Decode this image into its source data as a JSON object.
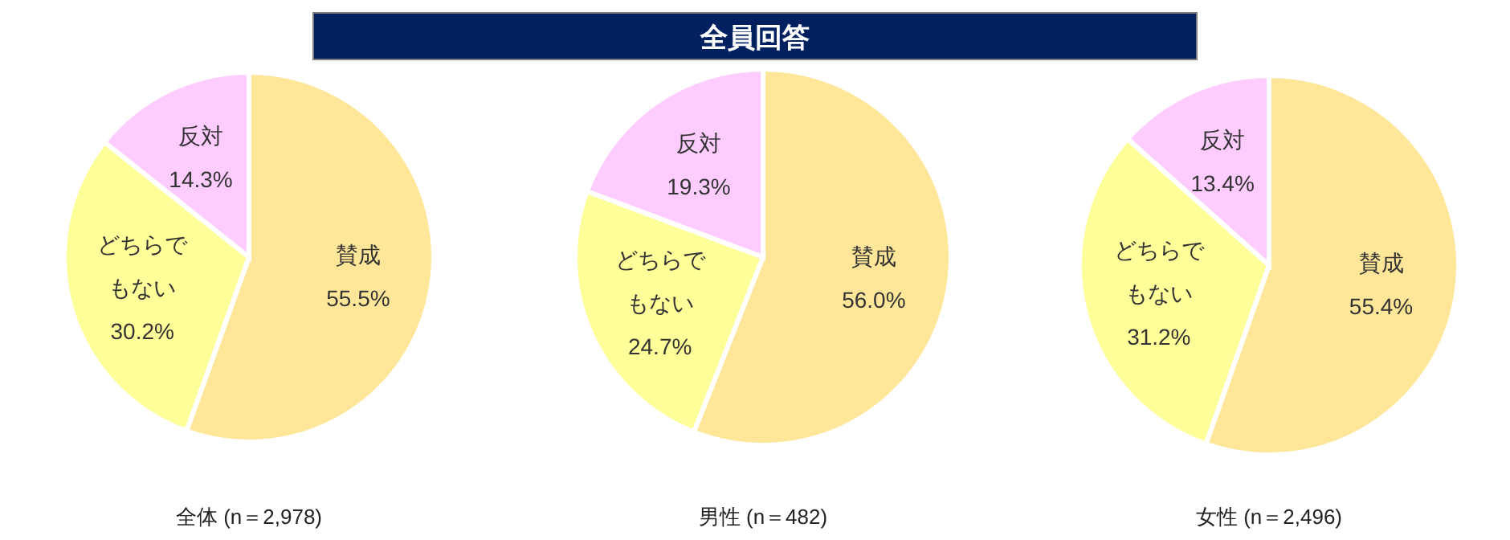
{
  "chart_data": [
    {
      "type": "pie",
      "title": "全体 (n＝2,978)",
      "annotations": [
        "全員回答"
      ],
      "categories": [
        "賛成",
        "どちらでもない",
        "反対"
      ],
      "values": [
        55.5,
        30.2,
        14.3
      ],
      "value_labels": [
        "55.5%",
        "30.2%",
        "14.3%"
      ],
      "colors": [
        "#ffe699",
        "#ffff99",
        "#ffccff"
      ]
    },
    {
      "type": "pie",
      "title": "男性 (n＝482)",
      "categories": [
        "賛成",
        "どちらでもない",
        "反対"
      ],
      "values": [
        56.0,
        24.7,
        19.3
      ],
      "value_labels": [
        "56.0%",
        "24.7%",
        "19.3%"
      ],
      "colors": [
        "#ffe699",
        "#ffff99",
        "#ffccff"
      ]
    },
    {
      "type": "pie",
      "title": "女性 (n＝2,496)",
      "categories": [
        "賛成",
        "どちらでもない",
        "反対"
      ],
      "values": [
        55.4,
        31.2,
        13.4
      ],
      "value_labels": [
        "55.4%",
        "31.2%",
        "13.4%"
      ],
      "colors": [
        "#ffe699",
        "#ffff99",
        "#ffccff"
      ]
    }
  ]
}
